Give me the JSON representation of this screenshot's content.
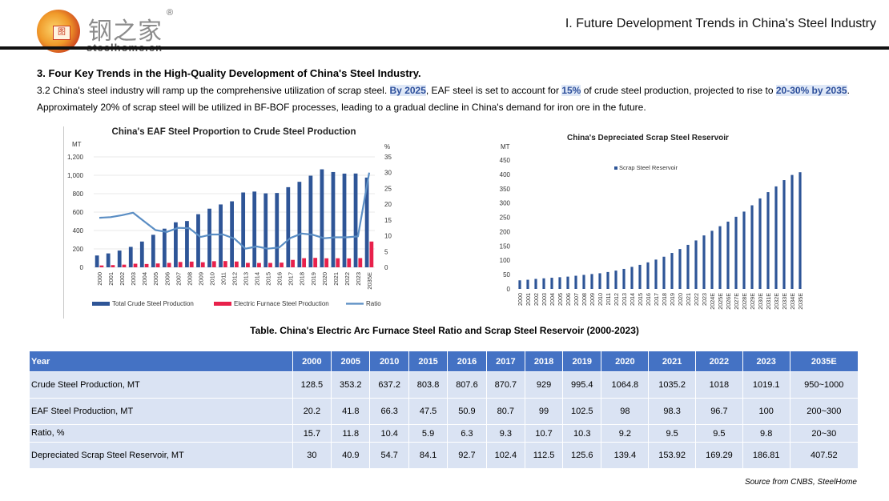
{
  "header": {
    "logo_cn": "钢之家",
    "logo_en": "steelhome.cn",
    "logo_reg": "®",
    "title": "I. Future Development Trends in China's Steel Industry"
  },
  "section": {
    "title": "3. Four Key Trends in the High-Quality Development of China's Steel Industry.",
    "p1": "3.2 China's steel industry will ramp up the comprehensive utilization of scrap steel.",
    "hl1": "By 2025",
    "p2": ", EAF steel is set to account for",
    "hl2": "15%",
    "p3": "of crude steel production, projected to rise to",
    "hl3": "20-30% by 2035",
    "p4": ". Approximately 20% of scrap steel will be utilized in BF-BOF processes, leading to a gradual decline in China's demand for iron ore in the future."
  },
  "colors": {
    "crude_bar": "#2e5597",
    "eaf_bar": "#e8214b",
    "ratio_line": "#5b8ec4",
    "table_header": "#4472c4",
    "table_cell": "#dae3f3",
    "highlight_text": "#2d4f9b"
  },
  "chart_data": [
    {
      "type": "bar",
      "title": "China's EAF Steel Proportion to Crude Steel Production",
      "ylabel": "MT",
      "y2label": "%",
      "categories": [
        "2000",
        "2001",
        "2002",
        "2003",
        "2004",
        "2005",
        "2006",
        "2007",
        "2008",
        "2009",
        "2010",
        "2011",
        "2012",
        "2013",
        "2014",
        "2015",
        "2016",
        "2017",
        "2018",
        "2019",
        "2020",
        "2021",
        "2022",
        "2023",
        "2035E"
      ],
      "ylim": [
        0,
        1200
      ],
      "yticks": [
        "0",
        "200",
        "400",
        "600",
        "800",
        "1,000",
        "1,200"
      ],
      "y2lim": [
        0,
        35
      ],
      "y2ticks": [
        "0",
        "5",
        "10",
        "15",
        "20",
        "25",
        "30",
        "35"
      ],
      "series": [
        {
          "name": "Total Crude Steel Production",
          "axis": "left",
          "kind": "bar",
          "values": [
            128.5,
            151,
            182,
            222,
            280,
            353.2,
            420,
            489,
            503,
            577,
            637.2,
            683,
            717,
            813,
            823,
            803.8,
            807.6,
            870.7,
            929,
            995.4,
            1064.8,
            1035.2,
            1018,
            1019.1,
            975
          ]
        },
        {
          "name": "Electric Furnace Steel Production",
          "axis": "left",
          "kind": "bar",
          "values": [
            20.2,
            24,
            29,
            39,
            36,
            41.8,
            48,
            58,
            62,
            55,
            66.3,
            68,
            63,
            48,
            47,
            47.5,
            50.9,
            80.7,
            99,
            102.5,
            98,
            98.3,
            96.7,
            100,
            280
          ]
        },
        {
          "name": "Ratio",
          "axis": "right",
          "kind": "line",
          "values": [
            15.7,
            15.9,
            16.5,
            17.3,
            14.5,
            11.8,
            11.2,
            12.5,
            12.4,
            9.6,
            10.4,
            10.4,
            9.1,
            5.9,
            6.6,
            5.9,
            6.3,
            9.3,
            10.7,
            10.3,
            9.2,
            9.5,
            9.5,
            9.8,
            30
          ]
        }
      ],
      "legend": "bottom",
      "grid": true
    },
    {
      "type": "bar",
      "title": "China's Depreciated Scrap Steel Reservoir",
      "ylabel": "MT",
      "categories": [
        "2000",
        "2001",
        "2002",
        "2003",
        "2004",
        "2005",
        "2006",
        "2007",
        "2008",
        "2009",
        "2010",
        "2011",
        "2012",
        "2013",
        "2014",
        "2015",
        "2016",
        "2017",
        "2018",
        "2019",
        "2020",
        "2021",
        "2022",
        "2023",
        "2024E",
        "2025E",
        "2026E",
        "2027E",
        "2028E",
        "2029E",
        "2030E",
        "2031E",
        "2032E",
        "2033E",
        "2034E",
        "2035E"
      ],
      "ylim": [
        0,
        450
      ],
      "yticks": [
        "0",
        "50",
        "100",
        "150",
        "200",
        "250",
        "300",
        "350",
        "400",
        "450"
      ],
      "series": [
        {
          "name": "Scrap Steel Reservoir",
          "values": [
            30,
            32,
            35,
            37,
            39,
            40.9,
            43,
            46,
            49,
            52,
            54.7,
            59,
            64,
            70,
            77,
            84.1,
            92.7,
            102.4,
            112.5,
            125.6,
            139.4,
            153.92,
            169.29,
            186.81,
            203,
            219,
            235,
            252,
            270,
            292,
            316,
            338,
            358,
            380,
            398,
            407.52
          ]
        }
      ],
      "legend": "top-right",
      "grid": false
    }
  ],
  "table": {
    "title": "Table. China's Electric Arc Furnace Steel Ratio and Scrap Steel Reservoir (2000-2023)",
    "headers": [
      "Year",
      "2000",
      "2005",
      "2010",
      "2015",
      "2016",
      "2017",
      "2018",
      "2019",
      "2020",
      "2021",
      "2022",
      "2023",
      "2035E"
    ],
    "rows": [
      [
        "Crude Steel Production, MT",
        "128.5",
        "353.2",
        "637.2",
        "803.8",
        "807.6",
        "870.7",
        "929",
        "995.4",
        "1064.8",
        "1035.2",
        "1018",
        "1019.1",
        "950~1000"
      ],
      [
        "EAF Steel Production, MT",
        "20.2",
        "41.8",
        "66.3",
        "47.5",
        "50.9",
        "80.7",
        "99",
        "102.5",
        "98",
        "98.3",
        "96.7",
        "100",
        "200~300"
      ],
      [
        "Ratio, %",
        "15.7",
        "11.8",
        "10.4",
        "5.9",
        "6.3",
        "9.3",
        "10.7",
        "10.3",
        "9.2",
        "9.5",
        "9.5",
        "9.8",
        "20~30"
      ],
      [
        "Depreciated Scrap Steel Reservoir, MT",
        "30",
        "40.9",
        "54.7",
        "84.1",
        "92.7",
        "102.4",
        "112.5",
        "125.6",
        "139.4",
        "153.92",
        "169.29",
        "186.81",
        "407.52"
      ]
    ]
  },
  "source": "Source from CNBS, SteelHome"
}
